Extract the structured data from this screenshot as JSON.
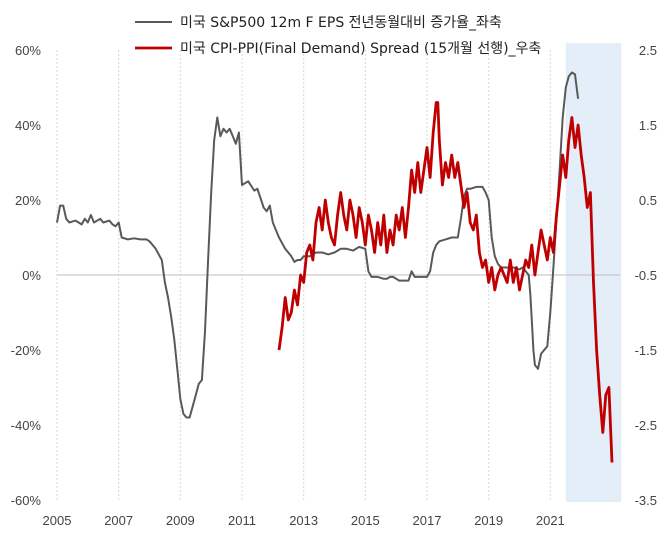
{
  "chart_data": {
    "type": "line",
    "legend": {
      "position": "top",
      "entries": [
        {
          "series": "eps",
          "label": "미국 S&P500 12m F EPS 전년동월대비 증가율_좌축"
        },
        {
          "series": "spread",
          "label": "미국 CPI-PPI(Final Demand) Spread (15개월 선행)_우축"
        }
      ]
    },
    "x_axis": {
      "range": [
        2005.0,
        2023.0
      ],
      "ticks": [
        "2005",
        "2007",
        "2009",
        "2011",
        "2013",
        "2015",
        "2017",
        "2019",
        "2021"
      ]
    },
    "y_axis_left": {
      "range": [
        -60,
        60
      ],
      "ticks": [
        "60%",
        "40%",
        "20%",
        "0%",
        "-20%",
        "-40%",
        "-60%"
      ]
    },
    "y_axis_right": {
      "range": [
        -3.5,
        2.5
      ],
      "ticks": [
        "2.5",
        "1.5",
        "0.5",
        "-0.5",
        "-1.5",
        "-2.5",
        "-3.5"
      ]
    },
    "shaded_region": {
      "x_start": 2021.5,
      "x_end": 2023.3,
      "color": "#e4eef8"
    },
    "grid": {
      "vertical": true,
      "zero_line": true
    },
    "colors": {
      "eps": "#595959",
      "spread": "#c00000"
    },
    "series": [
      {
        "name": "미국 S&P500 12m F EPS 전년동월대비 증가율",
        "axis": "left",
        "points": [
          [
            2005.0,
            14
          ],
          [
            2005.1,
            18.5
          ],
          [
            2005.2,
            18.5
          ],
          [
            2005.3,
            15
          ],
          [
            2005.4,
            14
          ],
          [
            2005.6,
            14.5
          ],
          [
            2005.8,
            13.5
          ],
          [
            2005.9,
            15
          ],
          [
            2006.0,
            14
          ],
          [
            2006.1,
            16
          ],
          [
            2006.2,
            14
          ],
          [
            2006.4,
            15
          ],
          [
            2006.5,
            14
          ],
          [
            2006.7,
            14.5
          ],
          [
            2006.8,
            13.5
          ],
          [
            2006.9,
            13
          ],
          [
            2007.0,
            14
          ],
          [
            2007.1,
            10
          ],
          [
            2007.3,
            9.5
          ],
          [
            2007.5,
            9.8
          ],
          [
            2007.7,
            9.5
          ],
          [
            2007.9,
            9.5
          ],
          [
            2008.0,
            9
          ],
          [
            2008.1,
            8
          ],
          [
            2008.2,
            7
          ],
          [
            2008.4,
            4
          ],
          [
            2008.5,
            -2
          ],
          [
            2008.6,
            -6
          ],
          [
            2008.7,
            -11
          ],
          [
            2008.8,
            -17
          ],
          [
            2008.9,
            -25
          ],
          [
            2009.0,
            -33
          ],
          [
            2009.1,
            -37
          ],
          [
            2009.2,
            -38
          ],
          [
            2009.3,
            -38
          ],
          [
            2009.4,
            -35
          ],
          [
            2009.5,
            -32
          ],
          [
            2009.6,
            -29
          ],
          [
            2009.7,
            -28
          ],
          [
            2009.8,
            -15
          ],
          [
            2009.9,
            4
          ],
          [
            2010.0,
            22
          ],
          [
            2010.1,
            36
          ],
          [
            2010.2,
            42
          ],
          [
            2010.3,
            37
          ],
          [
            2010.4,
            39
          ],
          [
            2010.5,
            38
          ],
          [
            2010.6,
            39
          ],
          [
            2010.7,
            37
          ],
          [
            2010.8,
            35
          ],
          [
            2010.9,
            38
          ],
          [
            2011.0,
            24
          ],
          [
            2011.2,
            25
          ],
          [
            2011.4,
            22.5
          ],
          [
            2011.5,
            23
          ],
          [
            2011.6,
            20.5
          ],
          [
            2011.7,
            18
          ],
          [
            2011.8,
            17
          ],
          [
            2011.9,
            18.5
          ],
          [
            2012.0,
            14
          ],
          [
            2012.2,
            10
          ],
          [
            2012.4,
            7
          ],
          [
            2012.5,
            6
          ],
          [
            2012.6,
            5
          ],
          [
            2012.7,
            3.5
          ],
          [
            2012.8,
            4
          ],
          [
            2012.9,
            4
          ],
          [
            2013.0,
            5
          ],
          [
            2013.2,
            5
          ],
          [
            2013.4,
            6
          ],
          [
            2013.6,
            6
          ],
          [
            2013.8,
            5.5
          ],
          [
            2014.0,
            6
          ],
          [
            2014.2,
            7
          ],
          [
            2014.4,
            7
          ],
          [
            2014.6,
            6.5
          ],
          [
            2014.8,
            7.5
          ],
          [
            2015.0,
            7
          ],
          [
            2015.1,
            1
          ],
          [
            2015.2,
            -0.5
          ],
          [
            2015.4,
            -0.5
          ],
          [
            2015.6,
            -1
          ],
          [
            2015.7,
            -1
          ],
          [
            2015.8,
            -0.5
          ],
          [
            2015.9,
            -0.5
          ],
          [
            2016.0,
            -1
          ],
          [
            2016.1,
            -1.5
          ],
          [
            2016.2,
            -1.5
          ],
          [
            2016.4,
            -1.5
          ],
          [
            2016.5,
            1
          ],
          [
            2016.6,
            -0.5
          ],
          [
            2016.8,
            -0.5
          ],
          [
            2017.0,
            -0.5
          ],
          [
            2017.1,
            1
          ],
          [
            2017.2,
            6
          ],
          [
            2017.3,
            8
          ],
          [
            2017.4,
            9
          ],
          [
            2017.6,
            9.5
          ],
          [
            2017.8,
            10
          ],
          [
            2018.0,
            10
          ],
          [
            2018.1,
            15
          ],
          [
            2018.2,
            21
          ],
          [
            2018.3,
            23
          ],
          [
            2018.4,
            23
          ],
          [
            2018.6,
            23.5
          ],
          [
            2018.8,
            23.5
          ],
          [
            2018.9,
            22
          ],
          [
            2019.0,
            20
          ],
          [
            2019.1,
            10
          ],
          [
            2019.2,
            5
          ],
          [
            2019.3,
            3
          ],
          [
            2019.4,
            2
          ],
          [
            2019.6,
            2
          ],
          [
            2019.8,
            2
          ],
          [
            2020.0,
            1.5
          ],
          [
            2020.1,
            2
          ],
          [
            2020.2,
            1
          ],
          [
            2020.3,
            0
          ],
          [
            2020.35,
            -5
          ],
          [
            2020.4,
            -12
          ],
          [
            2020.45,
            -20
          ],
          [
            2020.5,
            -24
          ],
          [
            2020.6,
            -25
          ],
          [
            2020.7,
            -21
          ],
          [
            2020.8,
            -20
          ],
          [
            2020.9,
            -19
          ],
          [
            2021.0,
            -10
          ],
          [
            2021.1,
            2
          ],
          [
            2021.2,
            15
          ],
          [
            2021.3,
            28
          ],
          [
            2021.4,
            42
          ],
          [
            2021.5,
            50
          ],
          [
            2021.6,
            53
          ],
          [
            2021.7,
            54
          ],
          [
            2021.8,
            53.5
          ],
          [
            2021.9,
            47
          ]
        ]
      },
      {
        "name": "미국 CPI-PPI(Final Demand) Spread (15개월 선행)",
        "axis": "right",
        "points": [
          [
            2012.2,
            -1.5
          ],
          [
            2012.3,
            -1.2
          ],
          [
            2012.4,
            -0.8
          ],
          [
            2012.5,
            -1.1
          ],
          [
            2012.6,
            -1.0
          ],
          [
            2012.7,
            -0.7
          ],
          [
            2012.8,
            -0.9
          ],
          [
            2012.9,
            -0.5
          ],
          [
            2013.0,
            -0.6
          ],
          [
            2013.1,
            -0.2
          ],
          [
            2013.2,
            -0.1
          ],
          [
            2013.3,
            -0.3
          ],
          [
            2013.4,
            0.2
          ],
          [
            2013.5,
            0.4
          ],
          [
            2013.6,
            0.1
          ],
          [
            2013.7,
            0.5
          ],
          [
            2013.8,
            0.2
          ],
          [
            2013.9,
            0.0
          ],
          [
            2014.0,
            -0.1
          ],
          [
            2014.1,
            0.3
          ],
          [
            2014.2,
            0.6
          ],
          [
            2014.3,
            0.3
          ],
          [
            2014.4,
            0.1
          ],
          [
            2014.5,
            0.5
          ],
          [
            2014.6,
            0.3
          ],
          [
            2014.7,
            0.0
          ],
          [
            2014.8,
            0.4
          ],
          [
            2014.9,
            0.2
          ],
          [
            2015.0,
            -0.1
          ],
          [
            2015.1,
            0.3
          ],
          [
            2015.2,
            0.1
          ],
          [
            2015.3,
            -0.2
          ],
          [
            2015.4,
            0.2
          ],
          [
            2015.5,
            -0.1
          ],
          [
            2015.6,
            0.3
          ],
          [
            2015.7,
            -0.2
          ],
          [
            2015.8,
            0.1
          ],
          [
            2015.9,
            -0.1
          ],
          [
            2016.0,
            0.3
          ],
          [
            2016.1,
            0.1
          ],
          [
            2016.2,
            0.4
          ],
          [
            2016.3,
            0.0
          ],
          [
            2016.4,
            0.4
          ],
          [
            2016.5,
            0.9
          ],
          [
            2016.6,
            0.6
          ],
          [
            2016.7,
            1.0
          ],
          [
            2016.8,
            0.6
          ],
          [
            2016.9,
            0.9
          ],
          [
            2017.0,
            1.2
          ],
          [
            2017.1,
            0.8
          ],
          [
            2017.2,
            1.4
          ],
          [
            2017.3,
            1.8
          ],
          [
            2017.35,
            1.8
          ],
          [
            2017.4,
            1.3
          ],
          [
            2017.5,
            0.7
          ],
          [
            2017.6,
            1.0
          ],
          [
            2017.7,
            0.8
          ],
          [
            2017.8,
            1.1
          ],
          [
            2017.9,
            0.8
          ],
          [
            2018.0,
            1.0
          ],
          [
            2018.1,
            0.7
          ],
          [
            2018.2,
            0.4
          ],
          [
            2018.3,
            0.6
          ],
          [
            2018.4,
            0.2
          ],
          [
            2018.5,
            0.1
          ],
          [
            2018.6,
            0.3
          ],
          [
            2018.7,
            -0.2
          ],
          [
            2018.8,
            -0.4
          ],
          [
            2018.9,
            -0.3
          ],
          [
            2019.0,
            -0.6
          ],
          [
            2019.1,
            -0.4
          ],
          [
            2019.2,
            -0.7
          ],
          [
            2019.3,
            -0.5
          ],
          [
            2019.4,
            -0.4
          ],
          [
            2019.5,
            -0.5
          ],
          [
            2019.6,
            -0.6
          ],
          [
            2019.7,
            -0.3
          ],
          [
            2019.8,
            -0.6
          ],
          [
            2019.9,
            -0.4
          ],
          [
            2020.0,
            -0.7
          ],
          [
            2020.1,
            -0.5
          ],
          [
            2020.2,
            -0.3
          ],
          [
            2020.3,
            -0.4
          ],
          [
            2020.4,
            -0.1
          ],
          [
            2020.5,
            -0.5
          ],
          [
            2020.6,
            -0.2
          ],
          [
            2020.7,
            0.1
          ],
          [
            2020.8,
            -0.1
          ],
          [
            2020.9,
            -0.3
          ],
          [
            2021.0,
            0.0
          ],
          [
            2021.1,
            -0.2
          ],
          [
            2021.2,
            0.3
          ],
          [
            2021.3,
            0.7
          ],
          [
            2021.4,
            1.1
          ],
          [
            2021.5,
            0.8
          ],
          [
            2021.6,
            1.3
          ],
          [
            2021.7,
            1.6
          ],
          [
            2021.8,
            1.2
          ],
          [
            2021.9,
            1.5
          ],
          [
            2022.0,
            1.1
          ],
          [
            2022.1,
            0.8
          ],
          [
            2022.2,
            0.4
          ],
          [
            2022.3,
            0.6
          ],
          [
            2022.4,
            -0.6
          ],
          [
            2022.5,
            -1.5
          ],
          [
            2022.6,
            -2.1
          ],
          [
            2022.7,
            -2.6
          ],
          [
            2022.8,
            -2.1
          ],
          [
            2022.9,
            -2.0
          ],
          [
            2023.0,
            -3.0
          ]
        ]
      }
    ]
  }
}
